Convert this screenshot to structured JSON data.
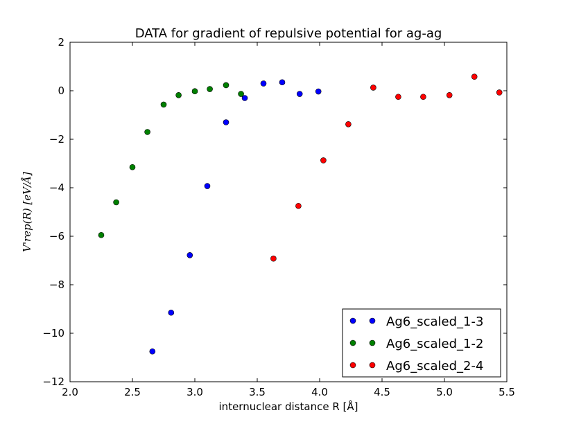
{
  "chart_data": {
    "type": "scatter",
    "title": "DATA for gradient of repulsive potential for ag-ag",
    "xlabel": "internuclear distance R [Å]",
    "ylabel": "V'rep(R) [eV/Å]",
    "xlim": [
      2.0,
      5.5
    ],
    "ylim": [
      -12,
      2
    ],
    "xticks": [
      "2.0",
      "2.5",
      "3.0",
      "3.5",
      "4.0",
      "4.5",
      "5.0",
      "5.5"
    ],
    "yticks": [
      "2",
      "0",
      "−2",
      "−4",
      "−6",
      "−8",
      "−10",
      "−12"
    ],
    "xtick_values": [
      2.0,
      2.5,
      3.0,
      3.5,
      4.0,
      4.5,
      5.0,
      5.5
    ],
    "ytick_values": [
      2,
      0,
      -2,
      -4,
      -6,
      -8,
      -10,
      -12
    ],
    "grid": false,
    "legend_position": "bottom-right",
    "series": [
      {
        "name": "Ag6_scaled_1-3",
        "color": "#0000ff",
        "x": [
          2.66,
          2.81,
          2.96,
          3.1,
          3.25,
          3.4,
          3.55,
          3.7,
          3.84,
          3.99
        ],
        "y": [
          -10.75,
          -9.15,
          -6.78,
          -3.93,
          -1.3,
          -0.3,
          0.3,
          0.35,
          -0.13,
          -0.03
        ]
      },
      {
        "name": "Ag6_scaled_1-2",
        "color": "#008000",
        "x": [
          2.25,
          2.37,
          2.5,
          2.62,
          2.75,
          2.87,
          3.0,
          3.12,
          3.25,
          3.37
        ],
        "y": [
          -5.95,
          -4.6,
          -3.15,
          -1.7,
          -0.57,
          -0.18,
          -0.02,
          0.07,
          0.23,
          -0.13
        ]
      },
      {
        "name": "Ag6_scaled_2-4",
        "color": "#ff0000",
        "x": [
          3.63,
          3.83,
          4.03,
          4.23,
          4.43,
          4.63,
          4.83,
          5.04,
          5.24,
          5.44
        ],
        "y": [
          -6.92,
          -4.75,
          -2.87,
          -1.38,
          0.13,
          -0.25,
          -0.25,
          -0.18,
          0.58,
          -0.07
        ]
      }
    ]
  }
}
